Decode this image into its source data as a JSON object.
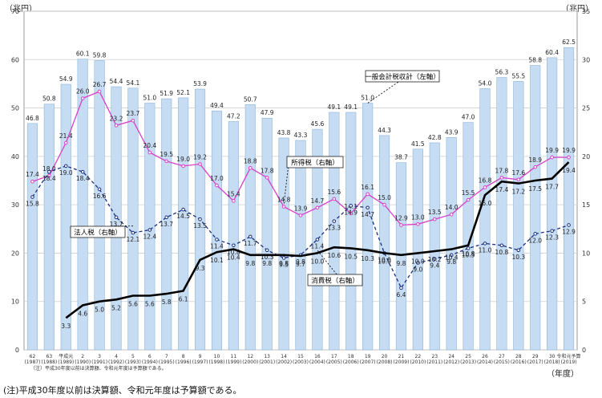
{
  "left_unit": "（兆円）",
  "right_unit": "（兆円）",
  "year_label": "（年度）",
  "note_top": "（注）平成30年度以前は決算額、令和元年度は予算額である。",
  "footnote": "(注)平成30年度以前は決算額、令和元年度は予算額である。",
  "chart_data": {
    "type": "bar+line",
    "title": "",
    "left_axis": {
      "range": [
        0,
        70
      ],
      "ticks": [
        "0",
        "10",
        "20",
        "30",
        "40",
        "50",
        "60",
        "70"
      ]
    },
    "right_axis": {
      "range": [
        0,
        35
      ],
      "ticks": [
        "0",
        "5",
        "10",
        "15",
        "20",
        "25",
        "30",
        "35"
      ]
    },
    "categories": [
      {
        "era": "62",
        "year": "(1987)"
      },
      {
        "era": "63",
        "year": "(1988)"
      },
      {
        "era": "平成元",
        "year": "(1989)"
      },
      {
        "era": "2",
        "year": "(1990)"
      },
      {
        "era": "3",
        "year": "(1991)"
      },
      {
        "era": "4",
        "year": "(1992)"
      },
      {
        "era": "5",
        "year": "(1993)"
      },
      {
        "era": "6",
        "year": "(1994)"
      },
      {
        "era": "7",
        "year": "(1995)"
      },
      {
        "era": "8",
        "year": "(1996)"
      },
      {
        "era": "9",
        "year": "(1997)"
      },
      {
        "era": "10",
        "year": "(1998)"
      },
      {
        "era": "11",
        "year": "(1999)"
      },
      {
        "era": "12",
        "year": "(2000)"
      },
      {
        "era": "13",
        "year": "(2001)"
      },
      {
        "era": "14",
        "year": "(2002)"
      },
      {
        "era": "15",
        "year": "(2003)"
      },
      {
        "era": "16",
        "year": "(2004)"
      },
      {
        "era": "17",
        "year": "(2005)"
      },
      {
        "era": "18",
        "year": "(2006)"
      },
      {
        "era": "19",
        "year": "(2007)"
      },
      {
        "era": "20",
        "year": "(2008)"
      },
      {
        "era": "21",
        "year": "(2009)"
      },
      {
        "era": "22",
        "year": "(2010)"
      },
      {
        "era": "23",
        "year": "(2011)"
      },
      {
        "era": "24",
        "year": "(2012)"
      },
      {
        "era": "25",
        "year": "(2013)"
      },
      {
        "era": "26",
        "year": "(2014)"
      },
      {
        "era": "27",
        "year": "(2015)"
      },
      {
        "era": "28",
        "year": "(2016)"
      },
      {
        "era": "29",
        "year": "(2017)"
      },
      {
        "era": "30",
        "year": "(2018)"
      },
      {
        "era": "令和元予算",
        "year": "(2019)"
      }
    ],
    "series": [
      {
        "name": "一般会計税収計（左軸）",
        "kind": "bar",
        "axis": "left",
        "color": "#c6dcf2",
        "edge": "#8fb4d8",
        "values": [
          46.8,
          50.8,
          54.9,
          60.1,
          59.8,
          54.4,
          54.1,
          51.0,
          51.9,
          52.1,
          53.9,
          49.4,
          47.2,
          50.7,
          47.9,
          43.8,
          43.3,
          45.6,
          49.1,
          49.1,
          51.0,
          44.3,
          38.7,
          41.5,
          42.8,
          43.9,
          47.0,
          54.0,
          56.3,
          55.5,
          58.8,
          60.4,
          62.5
        ]
      },
      {
        "name": "所得税（右軸）",
        "kind": "line",
        "axis": "right",
        "color": "#d83fc8",
        "values": [
          17.4,
          18.0,
          21.4,
          26.0,
          26.7,
          23.2,
          23.7,
          20.4,
          19.5,
          19.0,
          19.2,
          17.0,
          15.4,
          18.8,
          17.8,
          14.8,
          13.9,
          14.7,
          15.6,
          14.1,
          16.1,
          15.0,
          12.9,
          13.0,
          13.5,
          14.0,
          15.5,
          16.8,
          17.8,
          17.6,
          18.9,
          19.9,
          19.9
        ]
      },
      {
        "name": "法人税（右軸）",
        "kind": "line",
        "axis": "right",
        "color": "#1a2f80",
        "dashed": true,
        "values": [
          15.8,
          18.4,
          19.0,
          18.4,
          16.6,
          13.7,
          12.1,
          12.4,
          13.7,
          14.5,
          13.5,
          11.4,
          10.8,
          11.7,
          10.3,
          9.5,
          9.8,
          11.4,
          13.3,
          14.9,
          14.7,
          10.0,
          6.4,
          9.0,
          9.4,
          9.8,
          10.5,
          11.0,
          10.8,
          10.3,
          12.0,
          12.3,
          12.9
        ]
      },
      {
        "name": "消費税（右軸）",
        "kind": "line",
        "axis": "right",
        "color": "#000000",
        "bold": true,
        "values": [
          null,
          null,
          3.3,
          4.6,
          5.0,
          5.2,
          5.6,
          5.6,
          5.8,
          6.1,
          9.3,
          10.1,
          10.4,
          9.8,
          9.8,
          9.8,
          9.7,
          10.0,
          10.6,
          10.5,
          10.3,
          10.0,
          9.8,
          10.0,
          10.2,
          10.4,
          10.8,
          16.0,
          17.4,
          17.2,
          17.5,
          17.7,
          19.4
        ]
      }
    ],
    "callouts": [
      "一般会計税収計（左軸）",
      "所得税（右軸）",
      "法人税（右軸）",
      "消費税（右軸）"
    ]
  }
}
